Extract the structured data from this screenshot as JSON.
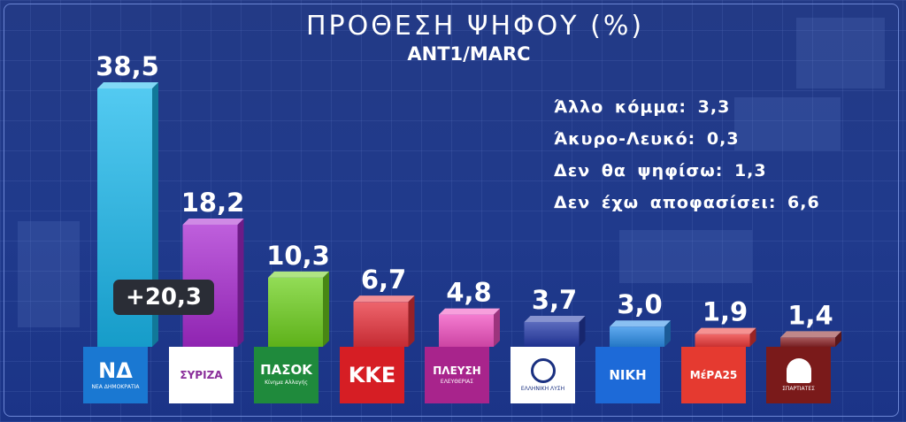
{
  "title": "ΠΡΟΘΕΣΗ ΨΗΦΟΥ (%)",
  "source": "ANT1/MARC",
  "side_notes": [
    "Άλλο κόμμα: 3,3",
    "Άκυρο-Λευκό: 0,3",
    "Δεν θα ψηφίσω: 1,3",
    "Δεν έχω αποφασίσει: 6,6"
  ],
  "difference_badge": "+20,3",
  "chart_data": {
    "type": "bar",
    "title": "ΠΡΟΘΕΣΗ ΨΗΦΟΥ (%)",
    "subtitle": "ANT1/MARC",
    "categories": [
      "ΝΔ",
      "ΣΥΡΙΖΑ",
      "ΠΑΣΟΚ",
      "ΚΚΕ",
      "ΠΛΕΥΣΗ ΕΛΕΥΘΕΡΙΑΣ",
      "ΕΛΛΗΝΙΚΗ ΛΥΣΗ",
      "ΝΙΚΗ",
      "ΜέΡΑ25",
      "ΣΠΑΡΤΙΑΤΕΣ"
    ],
    "values": [
      38.5,
      18.2,
      10.3,
      6.7,
      4.8,
      3.7,
      3.0,
      1.9,
      1.4
    ],
    "value_labels": [
      "38,5",
      "18,2",
      "10,3",
      "6,7",
      "4,8",
      "3,7",
      "3,0",
      "1,9",
      "1,4"
    ],
    "colors": [
      "#1ab8ec",
      "#a82ad0",
      "#6ed01e",
      "#e8323c",
      "#f050c0",
      "#243aa8",
      "#2a8ce8",
      "#ec3838",
      "#8c2428"
    ],
    "ylim": [
      0,
      40
    ],
    "grid": false,
    "legend": "none",
    "xlabel": "",
    "ylabel": ""
  },
  "logos": [
    {
      "big": "ΝΔ",
      "small": "ΝΕΑ ΔΗΜΟΚΡΑΤΙΑ",
      "bg": "#1a78d2",
      "color": "#ffffff",
      "icon": "nd-logo"
    },
    {
      "big": "ΣΥΡΙΖΑ",
      "small": "",
      "bg": "#ffffff",
      "color": "#8a2e9a",
      "icon": "syriza-logo"
    },
    {
      "big": "ΠΑΣΟΚ",
      "small": "Κίνημα Αλλαγής",
      "bg": "#1f8a3c",
      "color": "#ffffff",
      "icon": "pasok-logo"
    },
    {
      "big": "ΚΚΕ",
      "small": "",
      "bg": "#d61e24",
      "color": "#ffffff",
      "icon": "kke-logo"
    },
    {
      "big": "ΠΛΕΥΣΗ",
      "small": "ΕΛΕΥΘΕΡΙΑΣ",
      "bg": "#a8248c",
      "color": "#ffffff",
      "icon": "plefsi-logo"
    },
    {
      "big": "",
      "small": "ΕΛΛΗΝΙΚΗ ΛΥΣΗ",
      "bg": "#ffffff",
      "color": "#1a3080",
      "icon": "elliniki-lysi-logo"
    },
    {
      "big": "ΝΙΚΗ",
      "small": "",
      "bg": "#1d6ad8",
      "color": "#ffffff",
      "icon": "niki-logo"
    },
    {
      "big": "ΜέΡΑ25",
      "small": "",
      "bg": "#e53a30",
      "color": "#ffffff",
      "icon": "mera25-logo"
    },
    {
      "big": "",
      "small": "ΣΠΑΡΤΙΑΤΕΣ",
      "bg": "#7a1a1a",
      "color": "#ffffff",
      "icon": "spartiates-logo"
    }
  ]
}
